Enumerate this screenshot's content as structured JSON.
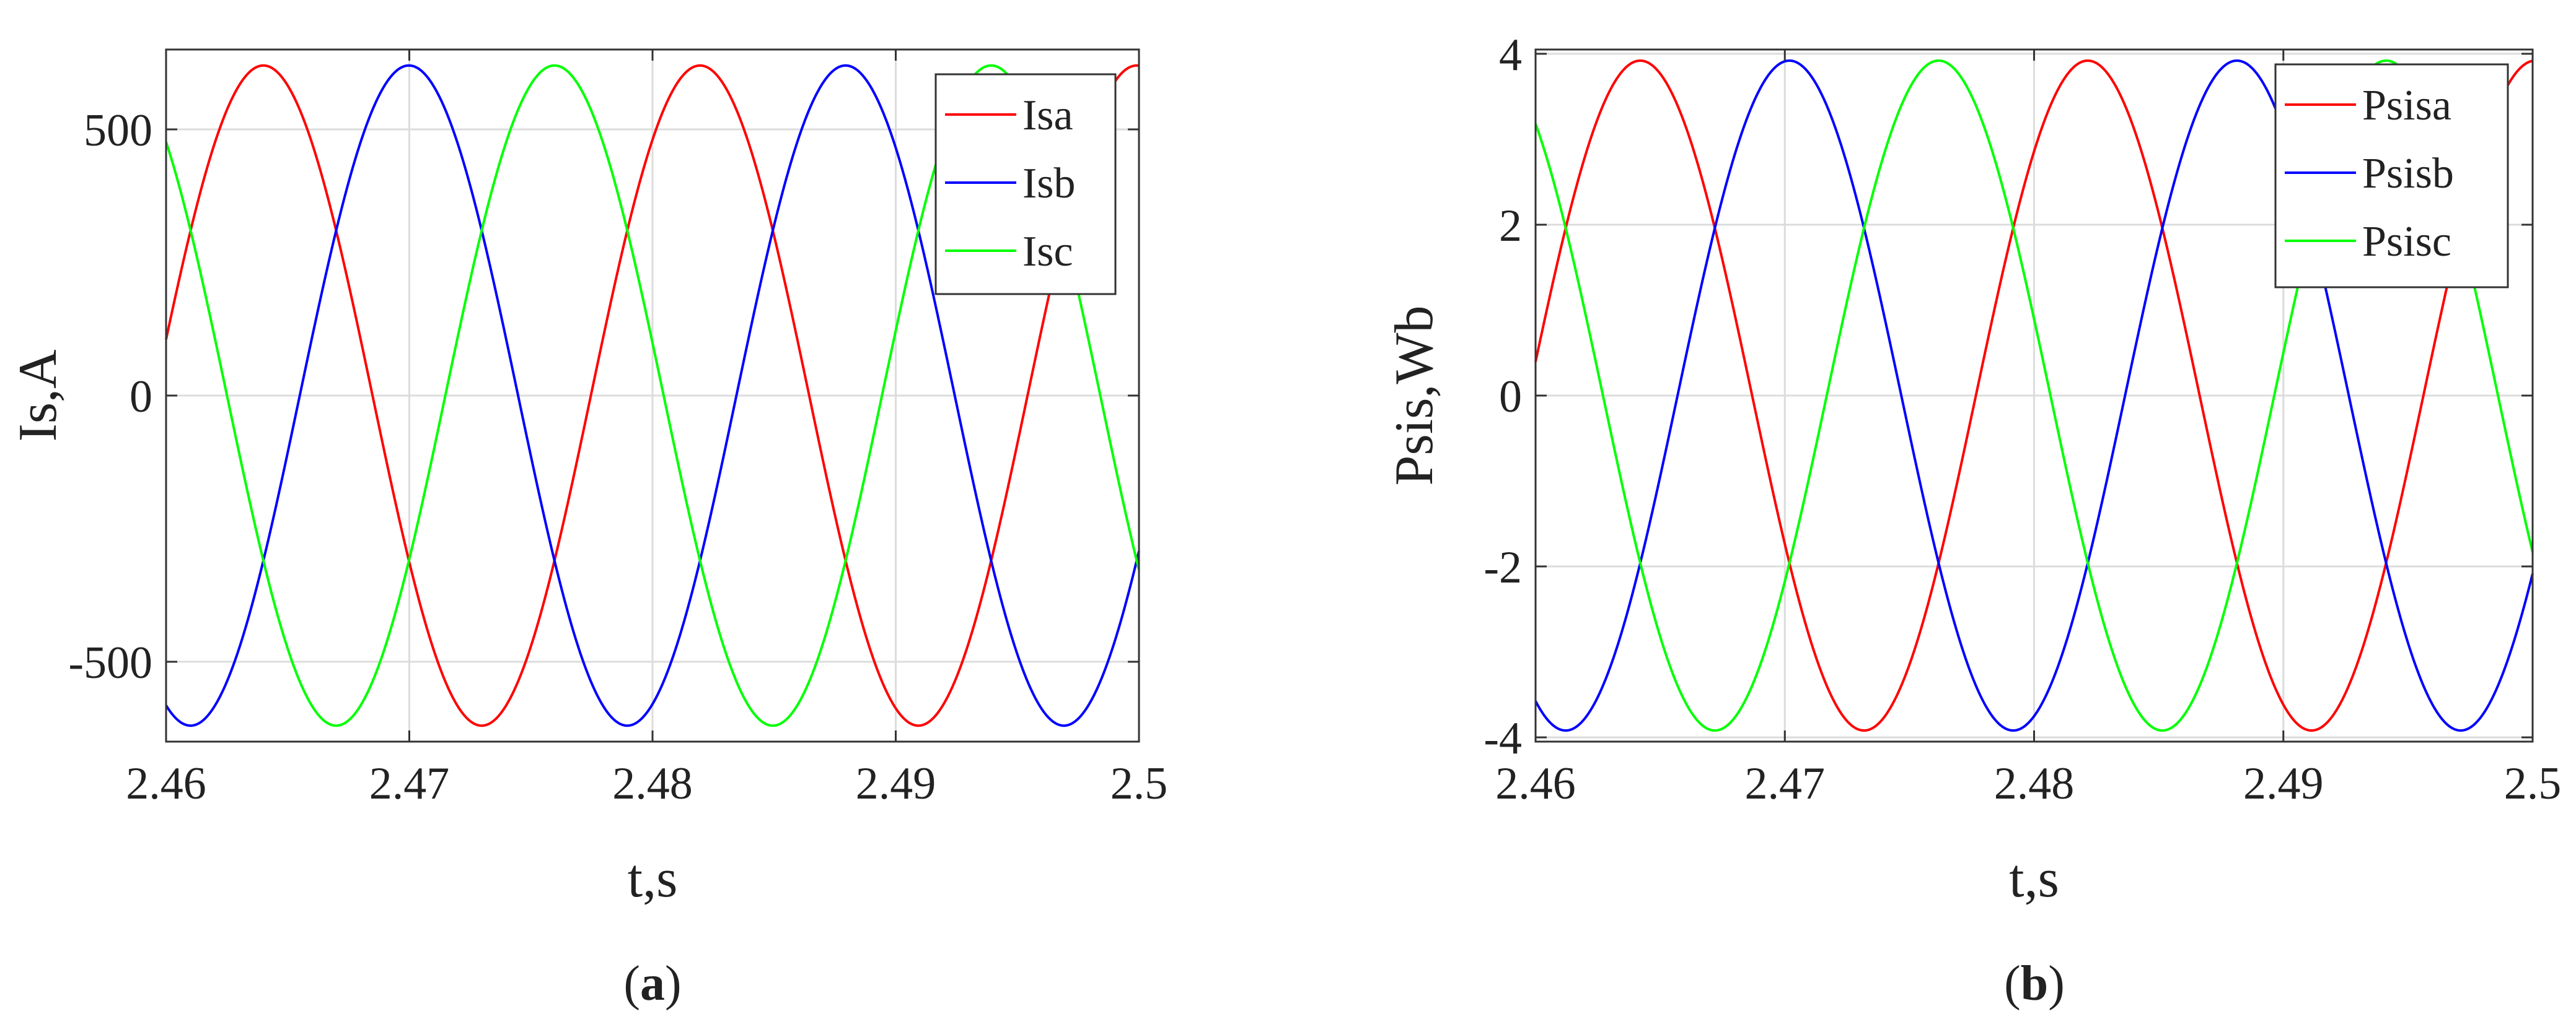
{
  "chart_data": [
    {
      "type": "line",
      "panel": "a",
      "caption": {
        "open": "(",
        "letter": "a",
        "close": ")"
      },
      "xlabel": "t,s",
      "ylabel": "Is,A",
      "xlim": [
        2.46,
        2.5
      ],
      "ylim": [
        -650,
        650
      ],
      "xticks": [
        2.46,
        2.47,
        2.48,
        2.49,
        2.5
      ],
      "xtick_labels": [
        "2.46",
        "2.47",
        "2.48",
        "2.49",
        "2.5"
      ],
      "yticks": [
        500,
        0,
        -500
      ],
      "ytick_labels": [
        "500",
        "0",
        "-500"
      ],
      "grid": true,
      "legend_position": "top-right",
      "waveform": {
        "amplitude": 620,
        "frequency_hz": 55.7,
        "peak_time_first_series": 2.464
      },
      "series": [
        {
          "name": "Isa",
          "color": "#ff0000",
          "phase_shift_deg": 0
        },
        {
          "name": "Isb",
          "color": "#0000ff",
          "phase_shift_deg": -120
        },
        {
          "name": "Isc",
          "color": "#00ff00",
          "phase_shift_deg": 120
        }
      ]
    },
    {
      "type": "line",
      "panel": "b",
      "caption": {
        "open": "(",
        "letter": "b",
        "close": ")"
      },
      "xlabel": "t,s",
      "ylabel": "Psis,Wb",
      "xlim": [
        2.46,
        2.5
      ],
      "ylim": [
        -4.05,
        4.05
      ],
      "xticks": [
        2.46,
        2.47,
        2.48,
        2.49,
        2.5
      ],
      "xtick_labels": [
        "2.46",
        "2.47",
        "2.48",
        "2.49",
        "2.5"
      ],
      "yticks": [
        4,
        2,
        0,
        -2,
        -4
      ],
      "ytick_labels": [
        "4",
        "2",
        "0",
        "-2",
        "-4"
      ],
      "grid": true,
      "legend_position": "top-right",
      "waveform": {
        "amplitude": 3.92,
        "frequency_hz": 55.7,
        "peak_time_first_series": 2.4642
      },
      "series": [
        {
          "name": "Psisa",
          "color": "#ff0000",
          "phase_shift_deg": 0
        },
        {
          "name": "Psisb",
          "color": "#0000ff",
          "phase_shift_deg": -120
        },
        {
          "name": "Psisc",
          "color": "#00ff00",
          "phase_shift_deg": 120
        }
      ]
    }
  ]
}
